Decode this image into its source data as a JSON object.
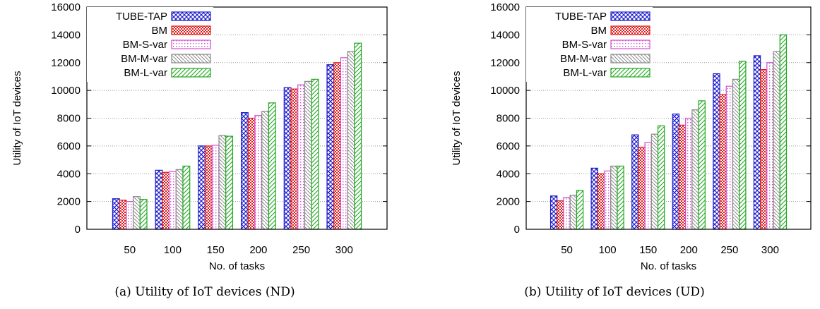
{
  "chart_data": [
    {
      "type": "bar",
      "caption": "(a) Utility of IoT devices (ND)",
      "xlabel": "No. of tasks",
      "ylabel": "Utility of IoT devices",
      "ylim": [
        0,
        16000
      ],
      "yticks": [
        0,
        2000,
        4000,
        6000,
        8000,
        10000,
        12000,
        14000,
        16000
      ],
      "grid": true,
      "legend_position": "top-left",
      "categories": [
        "50",
        "100",
        "150",
        "200",
        "250",
        "300"
      ],
      "series": [
        {
          "name": "TUBE-TAP",
          "color": "#1f1fcc",
          "values": [
            2200,
            4250,
            6000,
            8400,
            10200,
            11850
          ]
        },
        {
          "name": "BM",
          "color": "#e01b1b",
          "values": [
            2100,
            4100,
            6000,
            8000,
            10100,
            12000
          ]
        },
        {
          "name": "BM-S-var",
          "color": "#d24fd2",
          "values": [
            2000,
            4150,
            6050,
            8200,
            10400,
            12350
          ]
        },
        {
          "name": "BM-M-var",
          "color": "#888888",
          "values": [
            2350,
            4300,
            6750,
            8500,
            10650,
            12800
          ]
        },
        {
          "name": "BM-L-var",
          "color": "#1fa81f",
          "values": [
            2150,
            4550,
            6700,
            9100,
            10800,
            13400
          ]
        }
      ]
    },
    {
      "type": "bar",
      "caption": "(b) Utility of IoT devices (UD)",
      "xlabel": "No. of tasks",
      "ylabel": "Utility of IoT devices",
      "ylim": [
        0,
        16000
      ],
      "yticks": [
        0,
        2000,
        4000,
        6000,
        8000,
        10000,
        12000,
        14000,
        16000
      ],
      "grid": true,
      "legend_position": "top-left",
      "categories": [
        "50",
        "100",
        "150",
        "200",
        "250",
        "300"
      ],
      "series": [
        {
          "name": "TUBE-TAP",
          "color": "#1f1fcc",
          "values": [
            2400,
            4400,
            6800,
            8300,
            11200,
            12500
          ]
        },
        {
          "name": "BM",
          "color": "#e01b1b",
          "values": [
            2050,
            4000,
            5900,
            7500,
            9700,
            11500
          ]
        },
        {
          "name": "BM-S-var",
          "color": "#d24fd2",
          "values": [
            2300,
            4200,
            6250,
            8000,
            10300,
            12000
          ]
        },
        {
          "name": "BM-M-var",
          "color": "#888888",
          "values": [
            2450,
            4550,
            6850,
            8600,
            10800,
            12800
          ]
        },
        {
          "name": "BM-L-var",
          "color": "#1fa81f",
          "values": [
            2800,
            4550,
            7450,
            9250,
            12100,
            14000
          ]
        }
      ]
    }
  ]
}
